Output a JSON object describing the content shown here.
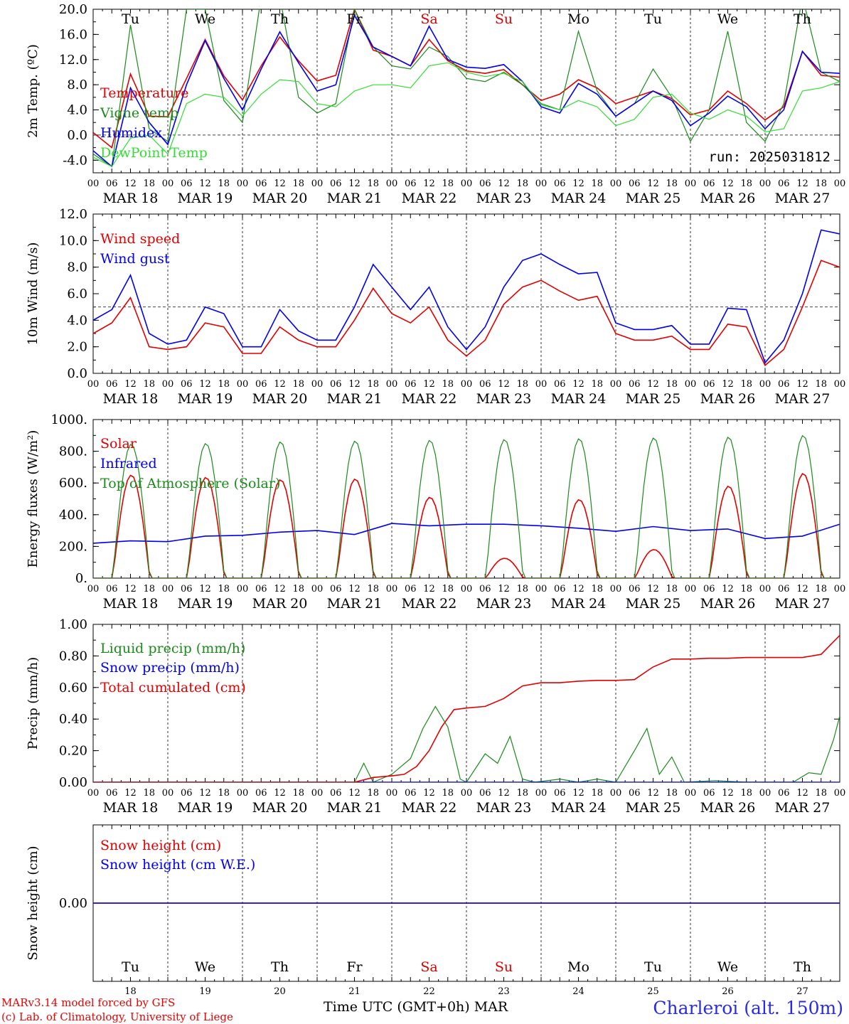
{
  "run_label": "run: 2025031812",
  "days": [
    "Tu",
    "We",
    "Th",
    "Fr",
    "Sa",
    "Su",
    "Mo",
    "Tu",
    "We",
    "Th"
  ],
  "weekend_days": [
    4,
    5
  ],
  "date_labels": [
    "MAR 18",
    "MAR 19",
    "MAR 20",
    "MAR 21",
    "MAR 22",
    "MAR 23",
    "MAR 24",
    "MAR 25",
    "MAR 26",
    "MAR 27"
  ],
  "day_numbers": [
    "18",
    "19",
    "20",
    "21",
    "22",
    "23",
    "24",
    "25",
    "26",
    "27"
  ],
  "hour_ticks": [
    "00",
    "06",
    "12",
    "18"
  ],
  "footer": {
    "model": "MARv3.14 model forced by GFS",
    "credit": "(c) Lab. of Climatology, University of Liege",
    "time_axis": "Time UTC (GMT+0h) MAR",
    "station": "Charleroi (alt. 150m)"
  },
  "colors": {
    "red": "#e00000",
    "green": "#1a8a1a",
    "blue": "#0000ee",
    "lightgreen": "#33dd33"
  },
  "chart_data": [
    {
      "type": "line",
      "ylabel": "2m Temp. (ºC)",
      "ylim": [
        -6,
        20
      ],
      "yticks": [
        "-4.0",
        "0.0",
        "4.0",
        "8.0",
        "12.0",
        "16.0",
        "20.0"
      ],
      "ytick_values": [
        -4,
        0,
        4,
        8,
        12,
        16,
        20
      ],
      "reference_line": 0,
      "x_unit": "hours since MAR 18 00 UTC",
      "series": [
        {
          "name": "Temperature",
          "color": "red",
          "x": [
            0,
            6,
            12,
            18,
            24,
            30,
            36,
            42,
            48,
            54,
            60,
            66,
            72,
            78,
            84,
            90,
            96,
            102,
            108,
            114,
            120,
            126,
            132,
            138,
            144,
            150,
            156,
            162,
            168,
            174,
            180,
            186,
            192,
            198,
            204,
            210,
            216,
            222,
            228,
            234,
            240
          ],
          "y": [
            0.4,
            -2,
            9.7,
            3,
            2.9,
            9,
            15.2,
            9.4,
            5.6,
            11,
            15.6,
            11.8,
            8.6,
            9.5,
            20,
            13.5,
            12.5,
            11,
            15.2,
            11.8,
            10.2,
            9.8,
            10.4,
            8,
            5.5,
            6.5,
            8.8,
            7.5,
            5,
            6,
            7,
            5.8,
            3.2,
            4,
            7,
            5,
            2.4,
            4.5,
            13.3,
            9.5,
            9.2
          ]
        },
        {
          "name": "Vigne temp",
          "color": "green",
          "x": [
            0,
            6,
            12,
            18,
            24,
            30,
            36,
            42,
            48,
            54,
            60,
            66,
            72,
            78,
            84,
            90,
            96,
            102,
            108,
            114,
            120,
            126,
            132,
            138,
            144,
            150,
            156,
            162,
            168,
            174,
            180,
            186,
            192,
            198,
            204,
            210,
            216,
            222,
            228,
            234,
            240
          ],
          "y": [
            -3,
            -5,
            17.5,
            1,
            -1,
            20,
            20,
            5.5,
            2,
            22,
            22,
            6,
            3.5,
            5,
            20,
            14,
            11,
            10.5,
            14,
            12.5,
            9,
            8.5,
            10,
            8,
            5,
            4,
            16.5,
            7,
            3,
            5,
            10.5,
            6,
            -1,
            4,
            16.5,
            2,
            -1,
            5,
            22,
            10,
            8.5
          ]
        },
        {
          "name": "Humidex",
          "color": "blue",
          "x": [
            0,
            6,
            12,
            18,
            24,
            30,
            36,
            42,
            48,
            54,
            60,
            66,
            72,
            78,
            84,
            90,
            96,
            102,
            108,
            114,
            120,
            126,
            132,
            138,
            144,
            150,
            156,
            162,
            168,
            174,
            180,
            186,
            192,
            198,
            204,
            210,
            216,
            222,
            228,
            234,
            240
          ],
          "y": [
            -2.5,
            -5,
            7.5,
            2,
            -1.5,
            8,
            15,
            9,
            4,
            10.5,
            16.4,
            11.5,
            7,
            8,
            19,
            14,
            12.5,
            11,
            17.3,
            12,
            10.8,
            10.6,
            11.2,
            8.5,
            4.5,
            3.5,
            8.2,
            6.5,
            3,
            5,
            7,
            5.5,
            1.5,
            3.5,
            6.2,
            4.5,
            1,
            4,
            13.3,
            10,
            9.8
          ]
        },
        {
          "name": "DewPoint Temp",
          "color": "lightgreen",
          "x": [
            0,
            6,
            12,
            18,
            24,
            30,
            36,
            42,
            48,
            54,
            60,
            66,
            72,
            78,
            84,
            90,
            96,
            102,
            108,
            114,
            120,
            126,
            132,
            138,
            144,
            150,
            156,
            162,
            168,
            174,
            180,
            186,
            192,
            198,
            204,
            210,
            216,
            222,
            228,
            234,
            240
          ],
          "y": [
            -3.5,
            -5,
            -0.5,
            0,
            -3,
            5,
            6.5,
            6,
            3,
            6.5,
            8.8,
            8.5,
            5,
            4.5,
            7,
            8,
            8,
            7.5,
            11,
            11.5,
            10,
            9.3,
            9.8,
            8.5,
            4.8,
            4,
            5.5,
            4.5,
            1.5,
            2.5,
            6,
            6.5,
            3.5,
            2.5,
            4,
            3,
            0.5,
            1,
            7,
            7.5,
            8.5
          ]
        }
      ]
    },
    {
      "type": "line",
      "ylabel": "10m Wind (m/s)",
      "ylim": [
        0,
        12
      ],
      "yticks": [
        "0.0",
        "2.0",
        "4.0",
        "6.0",
        "8.0",
        "10.0",
        "12.0"
      ],
      "ytick_values": [
        0,
        2,
        4,
        6,
        8,
        10,
        12
      ],
      "reference_line": 5,
      "x_unit": "hours since MAR 18 00 UTC",
      "series": [
        {
          "name": "Wind speed",
          "color": "red",
          "x": [
            0,
            6,
            12,
            18,
            24,
            30,
            36,
            42,
            48,
            54,
            60,
            66,
            72,
            78,
            84,
            90,
            96,
            102,
            108,
            114,
            120,
            126,
            132,
            138,
            144,
            150,
            156,
            162,
            168,
            174,
            180,
            186,
            192,
            198,
            204,
            210,
            216,
            222,
            228,
            234,
            240
          ],
          "y": [
            3,
            3.8,
            5.7,
            2,
            1.8,
            2,
            3.8,
            3.5,
            1.5,
            1.5,
            3.5,
            2.5,
            2,
            2,
            4,
            6.4,
            4.5,
            3.8,
            5,
            2.5,
            1.3,
            2.5,
            5.2,
            6.5,
            7,
            6.2,
            5.5,
            5.8,
            3,
            2.5,
            2.5,
            2.8,
            1.8,
            1.8,
            3.7,
            3.5,
            0.6,
            1.8,
            5,
            8.5,
            8
          ]
        },
        {
          "name": "Wind gust",
          "color": "blue",
          "x": [
            0,
            6,
            12,
            18,
            24,
            30,
            36,
            42,
            48,
            54,
            60,
            66,
            72,
            78,
            84,
            90,
            96,
            102,
            108,
            114,
            120,
            126,
            132,
            138,
            144,
            150,
            156,
            162,
            168,
            174,
            180,
            186,
            192,
            198,
            204,
            210,
            216,
            222,
            228,
            234,
            240
          ],
          "y": [
            4,
            4.8,
            7.4,
            3,
            2.2,
            2.5,
            5,
            4.5,
            2,
            2,
            4.8,
            3.2,
            2.5,
            2.5,
            5,
            8.2,
            6.5,
            4.8,
            6.5,
            3.5,
            1.8,
            3.5,
            6.5,
            8.5,
            9,
            8.2,
            7.5,
            7.6,
            3.8,
            3.3,
            3.3,
            3.6,
            2.2,
            2.2,
            4.9,
            4.8,
            0.8,
            2.5,
            6,
            10.8,
            10.5
          ]
        }
      ]
    },
    {
      "type": "line",
      "ylabel": "Energy fluxes (W/m²)",
      "ylim": [
        0,
        1000
      ],
      "yticks": [
        "0.",
        "200.",
        "400.",
        "600.",
        "800.",
        "1000."
      ],
      "ytick_values": [
        0,
        200,
        400,
        600,
        800,
        1000
      ],
      "x_unit": "hours since MAR 18 00 UTC",
      "series": [
        {
          "name": "Solar",
          "color": "red",
          "peaks_at_hour_12": [
            650,
            635,
            620,
            625,
            510,
            125,
            495,
            180,
            580,
            660
          ]
        },
        {
          "name": "Infrared",
          "color": "blue",
          "x": [
            0,
            12,
            24,
            36,
            48,
            60,
            72,
            84,
            96,
            108,
            120,
            132,
            144,
            156,
            168,
            180,
            192,
            204,
            216,
            228,
            240
          ],
          "y": [
            220,
            235,
            230,
            265,
            270,
            290,
            300,
            275,
            345,
            330,
            340,
            340,
            330,
            315,
            295,
            325,
            300,
            310,
            250,
            265,
            340
          ]
        },
        {
          "name": "Top of Atmosphere (Solar)",
          "color": "green",
          "peaks_at_hour_12": [
            845,
            850,
            860,
            865,
            870,
            875,
            880,
            885,
            890,
            900
          ]
        }
      ]
    },
    {
      "type": "line",
      "ylabel": "Precip (mm/h)",
      "ylim": [
        0,
        1
      ],
      "yticks": [
        "0.00",
        "0.20",
        "0.40",
        "0.60",
        "0.80",
        "1.00"
      ],
      "ytick_values": [
        0,
        0.2,
        0.4,
        0.6,
        0.8,
        1.0
      ],
      "x_unit": "hours since MAR 18 00 UTC",
      "series": [
        {
          "name": "Liquid precip (mm/h)",
          "color": "green",
          "x": [
            0,
            84,
            87,
            90,
            96,
            102,
            106,
            110,
            114,
            118,
            120,
            126,
            130,
            134,
            138,
            142,
            150,
            156,
            162,
            168,
            174,
            178,
            182,
            186,
            190,
            200,
            210,
            225,
            230,
            234,
            238,
            240
          ],
          "y": [
            0,
            0,
            0.12,
            0,
            0.05,
            0.15,
            0.34,
            0.48,
            0.35,
            0.02,
            0,
            0.18,
            0.12,
            0.29,
            0.02,
            0,
            0.02,
            0,
            0.02,
            0,
            0.2,
            0.34,
            0.05,
            0.16,
            0,
            0.01,
            0,
            0,
            0.06,
            0.05,
            0.27,
            0.42
          ]
        },
        {
          "name": "Snow precip (mm/h)",
          "color": "blue",
          "x": [
            0,
            240
          ],
          "y": [
            0,
            0
          ]
        },
        {
          "name": "Total cumulated (cm)",
          "color": "red",
          "x": [
            0,
            84,
            90,
            96,
            100,
            104,
            108,
            112,
            116,
            120,
            126,
            132,
            138,
            144,
            150,
            156,
            162,
            168,
            174,
            180,
            186,
            192,
            198,
            204,
            210,
            216,
            222,
            228,
            234,
            240
          ],
          "y": [
            0,
            0,
            0.03,
            0.04,
            0.05,
            0.1,
            0.2,
            0.35,
            0.46,
            0.47,
            0.48,
            0.53,
            0.61,
            0.63,
            0.63,
            0.64,
            0.645,
            0.645,
            0.65,
            0.73,
            0.78,
            0.78,
            0.785,
            0.785,
            0.79,
            0.79,
            0.79,
            0.79,
            0.81,
            0.93
          ]
        }
      ]
    },
    {
      "type": "line",
      "ylabel": "Snow height (cm)",
      "ylim": [
        -1,
        1
      ],
      "yticks": [
        "0.00"
      ],
      "ytick_values": [
        0
      ],
      "x_unit": "hours since MAR 18 00 UTC",
      "series": [
        {
          "name": "Snow height (cm)",
          "color": "red",
          "x": [
            0,
            240
          ],
          "y": [
            0,
            0
          ]
        },
        {
          "name": "Snow height (cm W.E.)",
          "color": "blue",
          "x": [
            0,
            240
          ],
          "y": [
            0,
            0
          ]
        }
      ]
    }
  ]
}
